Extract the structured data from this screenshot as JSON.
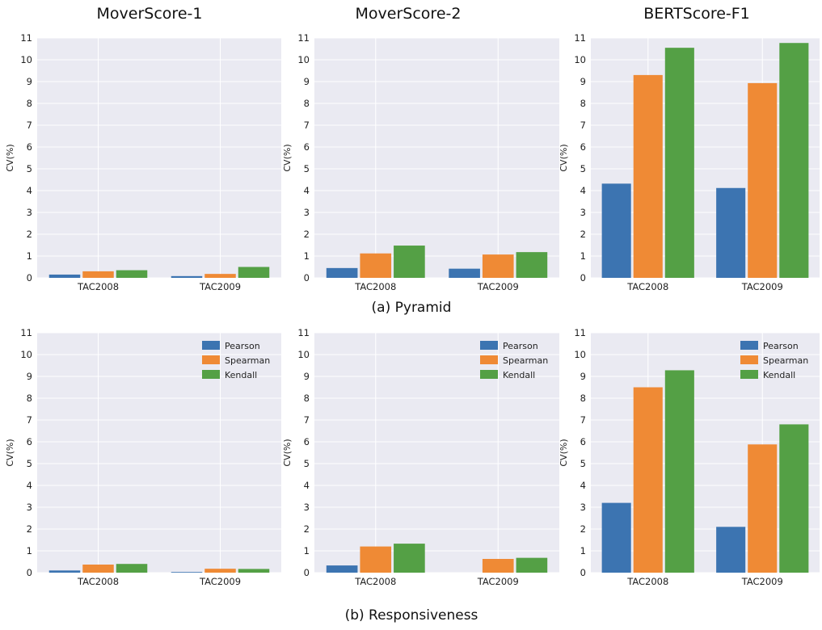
{
  "column_titles": [
    "MoverScore-1",
    "MoverScore-2",
    "BERTScore-F1"
  ],
  "row_captions": [
    "(a) Pyramid",
    "(b) Responsiveness"
  ],
  "colors": {
    "Pearson": "#3c74b1",
    "Spearman": "#ef8a35",
    "Kendall": "#54a045",
    "plot_bg": "#eaeaf2",
    "grid": "#ffffff"
  },
  "chart_data": [
    {
      "type": "bar",
      "title": "MoverScore-1",
      "group": "(a) Pyramid",
      "ylabel": "CV(%)",
      "ylim": [
        0,
        11
      ],
      "yticks": [
        0,
        1,
        2,
        3,
        4,
        5,
        6,
        7,
        8,
        9,
        10,
        11
      ],
      "categories": [
        "TAC2008",
        "TAC2009"
      ],
      "legend": false,
      "series": [
        {
          "name": "Pearson",
          "values": [
            0.15,
            0.08
          ]
        },
        {
          "name": "Spearman",
          "values": [
            0.3,
            0.18
          ]
        },
        {
          "name": "Kendall",
          "values": [
            0.35,
            0.5
          ]
        }
      ]
    },
    {
      "type": "bar",
      "title": "MoverScore-2",
      "group": "(a) Pyramid",
      "ylabel": "CV(%)",
      "ylim": [
        0,
        11
      ],
      "yticks": [
        0,
        1,
        2,
        3,
        4,
        5,
        6,
        7,
        8,
        9,
        10,
        11
      ],
      "categories": [
        "TAC2008",
        "TAC2009"
      ],
      "legend": false,
      "series": [
        {
          "name": "Pearson",
          "values": [
            0.45,
            0.42
          ]
        },
        {
          "name": "Spearman",
          "values": [
            1.12,
            1.07
          ]
        },
        {
          "name": "Kendall",
          "values": [
            1.48,
            1.18
          ]
        }
      ]
    },
    {
      "type": "bar",
      "title": "BERTScore-F1",
      "group": "(a) Pyramid",
      "ylabel": "CV(%)",
      "ylim": [
        0,
        11
      ],
      "yticks": [
        0,
        1,
        2,
        3,
        4,
        5,
        6,
        7,
        8,
        9,
        10,
        11
      ],
      "categories": [
        "TAC2008",
        "TAC2009"
      ],
      "legend": false,
      "series": [
        {
          "name": "Pearson",
          "values": [
            4.32,
            4.12
          ]
        },
        {
          "name": "Spearman",
          "values": [
            9.3,
            8.93
          ]
        },
        {
          "name": "Kendall",
          "values": [
            10.55,
            10.77
          ]
        }
      ]
    },
    {
      "type": "bar",
      "title": "MoverScore-1",
      "group": "(b) Responsiveness",
      "ylabel": "CV(%)",
      "ylim": [
        0,
        11
      ],
      "yticks": [
        0,
        1,
        2,
        3,
        4,
        5,
        6,
        7,
        8,
        9,
        10,
        11
      ],
      "categories": [
        "TAC2008",
        "TAC2009"
      ],
      "legend": true,
      "legend_position": "top-right",
      "series": [
        {
          "name": "Pearson",
          "values": [
            0.1,
            0.03
          ]
        },
        {
          "name": "Spearman",
          "values": [
            0.37,
            0.18
          ]
        },
        {
          "name": "Kendall",
          "values": [
            0.4,
            0.17
          ]
        }
      ]
    },
    {
      "type": "bar",
      "title": "MoverScore-2",
      "group": "(b) Responsiveness",
      "ylabel": "CV(%)",
      "ylim": [
        0,
        11
      ],
      "yticks": [
        0,
        1,
        2,
        3,
        4,
        5,
        6,
        7,
        8,
        9,
        10,
        11
      ],
      "categories": [
        "TAC2008",
        "TAC2009"
      ],
      "legend": true,
      "legend_position": "top-right",
      "series": [
        {
          "name": "Pearson",
          "values": [
            0.33,
            0.0
          ]
        },
        {
          "name": "Spearman",
          "values": [
            1.2,
            0.63
          ]
        },
        {
          "name": "Kendall",
          "values": [
            1.33,
            0.68
          ]
        }
      ]
    },
    {
      "type": "bar",
      "title": "BERTScore-F1",
      "group": "(b) Responsiveness",
      "ylabel": "CV(%)",
      "ylim": [
        0,
        11
      ],
      "yticks": [
        0,
        1,
        2,
        3,
        4,
        5,
        6,
        7,
        8,
        9,
        10,
        11
      ],
      "categories": [
        "TAC2008",
        "TAC2009"
      ],
      "legend": true,
      "legend_position": "top-right",
      "series": [
        {
          "name": "Pearson",
          "values": [
            3.2,
            2.1
          ]
        },
        {
          "name": "Spearman",
          "values": [
            8.5,
            5.88
          ]
        },
        {
          "name": "Kendall",
          "values": [
            9.28,
            6.8
          ]
        }
      ]
    }
  ]
}
